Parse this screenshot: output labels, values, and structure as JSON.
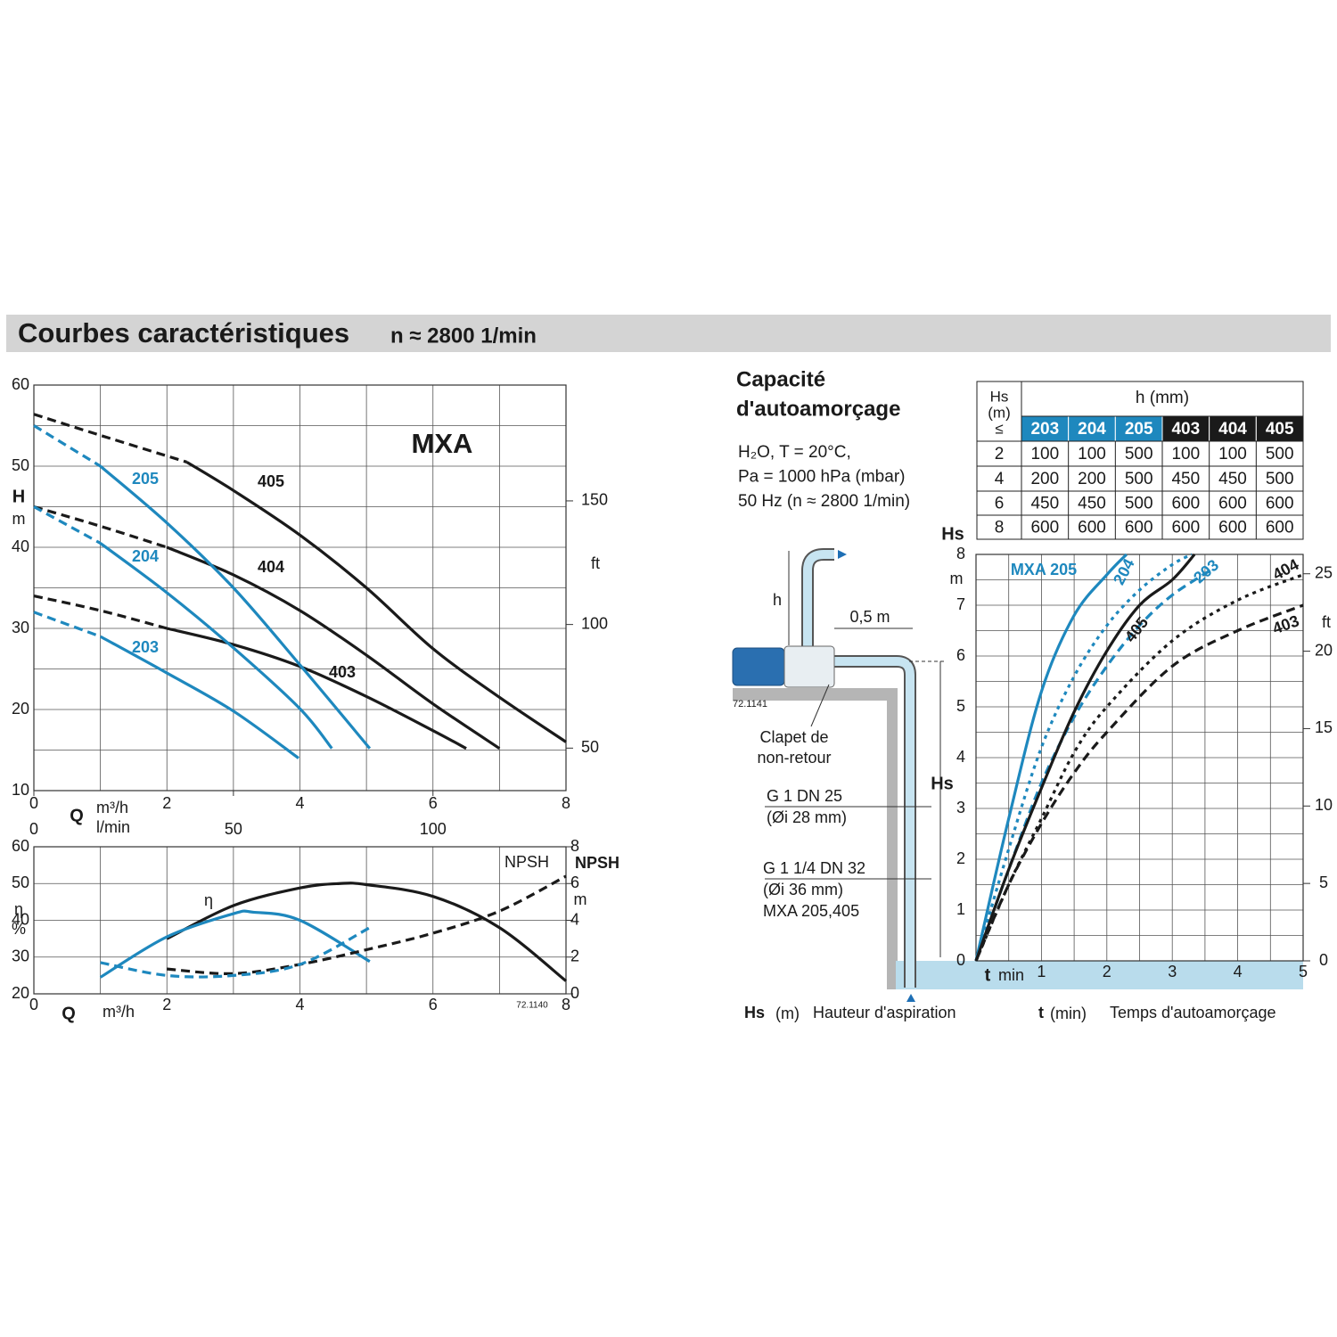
{
  "header": {
    "title": "Courbes caractéristiques",
    "speed": "n ≈ 2800 1/min"
  },
  "chart_data": [
    {
      "type": "line",
      "title": "MXA",
      "xlabel": "Q",
      "xunit": "m³/h",
      "x2unit": "l/min",
      "ylabel": "H",
      "yunit": "m",
      "y2unit": "ft",
      "xlim": [
        0,
        8
      ],
      "xticks": [
        0,
        2,
        4,
        6,
        8
      ],
      "xminor": [
        1,
        3,
        5,
        7
      ],
      "x2lim": [
        0,
        133.33
      ],
      "x2ticks": [
        0,
        50,
        100
      ],
      "ylim": [
        10,
        60
      ],
      "yticks": [
        10,
        20,
        30,
        40,
        50,
        60
      ],
      "yminor": [
        15,
        25,
        35,
        45,
        55
      ],
      "y2lim": [
        32.81,
        196.85
      ],
      "y2ticks": [
        50,
        100,
        150
      ],
      "grid": true,
      "series": [
        {
          "name": "405",
          "color": "#1a1a1a",
          "segments": [
            {
              "style": "dashed",
              "x": [
                0,
                1,
                2.3
              ],
              "values": [
                56.4,
                53.8,
                50.5
              ]
            },
            {
              "style": "solid",
              "x": [
                2.3,
                3,
                4,
                5,
                6,
                7,
                8
              ],
              "values": [
                50.5,
                47,
                41.5,
                35,
                27.5,
                21.5,
                16
              ]
            }
          ]
        },
        {
          "name": "404",
          "color": "#1a1a1a",
          "segments": [
            {
              "style": "dashed",
              "x": [
                0,
                1,
                2
              ],
              "values": [
                45,
                42.6,
                40
              ]
            },
            {
              "style": "solid",
              "x": [
                2,
                3,
                4,
                5,
                6,
                7
              ],
              "values": [
                40,
                36.6,
                32.2,
                26.7,
                20.7,
                15.2
              ]
            }
          ]
        },
        {
          "name": "403",
          "color": "#1a1a1a",
          "segments": [
            {
              "style": "dashed",
              "x": [
                0,
                1,
                2
              ],
              "values": [
                34,
                32.2,
                30
              ]
            },
            {
              "style": "solid",
              "x": [
                2,
                3,
                4,
                5,
                6,
                6.5
              ],
              "values": [
                30,
                28,
                25.3,
                21.6,
                17.4,
                15.2
              ]
            }
          ]
        },
        {
          "name": "205",
          "color": "#1e88be",
          "segments": [
            {
              "style": "dashed",
              "x": [
                0,
                1
              ],
              "values": [
                55,
                50
              ]
            },
            {
              "style": "solid",
              "x": [
                1,
                2,
                3,
                4,
                5.05
              ],
              "values": [
                50,
                43,
                35,
                25.5,
                15.2
              ]
            }
          ]
        },
        {
          "name": "204",
          "color": "#1e88be",
          "segments": [
            {
              "style": "dashed",
              "x": [
                0,
                1
              ],
              "values": [
                45,
                40.5
              ]
            },
            {
              "style": "solid",
              "x": [
                1,
                2,
                3,
                4,
                4.48
              ],
              "values": [
                40.5,
                34.4,
                27.6,
                20.1,
                15.2
              ]
            }
          ]
        },
        {
          "name": "203",
          "color": "#1e88be",
          "segments": [
            {
              "style": "dashed",
              "x": [
                0,
                1
              ],
              "values": [
                32,
                29
              ]
            },
            {
              "style": "solid",
              "x": [
                1,
                2,
                3,
                3.98
              ],
              "values": [
                29,
                24.5,
                19.8,
                14
              ]
            }
          ]
        }
      ]
    },
    {
      "type": "line",
      "xlabel": "Q",
      "xunit": "m³/h",
      "ylabel": "η",
      "yunit": "%",
      "y2label": "NPSH",
      "y2unit": "m",
      "code": "72.1140",
      "annotations": [
        "η",
        "NPSH"
      ],
      "xlim": [
        0,
        8
      ],
      "xticks": [
        0,
        2,
        4,
        6,
        8
      ],
      "xminor": [
        1,
        3,
        5,
        7
      ],
      "ylim": [
        20,
        60
      ],
      "yticks": [
        20,
        30,
        40,
        50,
        60
      ],
      "y2lim": [
        0,
        8
      ],
      "y2ticks": [
        0,
        2,
        4,
        6,
        8
      ],
      "grid": true,
      "series": [
        {
          "color": "#1a1a1a",
          "segments": [
            {
              "style": "solid",
              "x": [
                2,
                3,
                4,
                4.6,
                5,
                6,
                7,
                8
              ],
              "values": [
                35,
                44,
                48.8,
                50,
                49.7,
                46.5,
                38,
                23.5
              ]
            }
          ]
        },
        {
          "color": "#1e88be",
          "segments": [
            {
              "style": "solid",
              "x": [
                1,
                2,
                3,
                3.3,
                4,
                5.05
              ],
              "values": [
                24.5,
                35.5,
                41.8,
                42.2,
                40,
                28.8
              ]
            }
          ]
        },
        {
          "color": "#1a1a1a",
          "axis": "y2",
          "segments": [
            {
              "style": "dashed",
              "x": [
                2,
                3,
                4,
                5,
                6,
                7,
                8
              ],
              "values": [
                1.35,
                1.1,
                1.6,
                2.4,
                3.3,
                4.5,
                6.4
              ]
            }
          ]
        },
        {
          "color": "#1e88be",
          "axis": "y2",
          "segments": [
            {
              "style": "dashed",
              "x": [
                1,
                2,
                3,
                4,
                5.05
              ],
              "values": [
                1.7,
                1.0,
                1.0,
                1.6,
                3.6
              ]
            }
          ]
        }
      ]
    },
    {
      "type": "line",
      "xlabel": "t",
      "xunit": "min",
      "ylabel": "Hs",
      "yunit": "m",
      "y2unit": "ft",
      "xlim": [
        0,
        5
      ],
      "xticks": [
        1,
        2,
        3,
        4,
        5
      ],
      "xminor": [
        0.5,
        1.5,
        2.5,
        3.5,
        4.5
      ],
      "ylim": [
        0,
        8
      ],
      "yticks": [
        0,
        1,
        2,
        3,
        4,
        5,
        6,
        7,
        8
      ],
      "yminor": [
        0.5,
        1.5,
        2.5,
        3.5,
        4.5,
        5.5,
        6.5,
        7.5
      ],
      "y2lim": [
        0,
        26.25
      ],
      "y2ticks": [
        0,
        5,
        10,
        15,
        20,
        25
      ],
      "grid": true,
      "series": [
        {
          "name": "MXA 205",
          "color": "#1e88be",
          "segments": [
            {
              "style": "solid",
              "x": [
                0,
                0.5,
                1,
                1.5,
                2,
                2.3
              ],
              "values": [
                0,
                2.8,
                5.3,
                6.8,
                7.6,
                8
              ]
            }
          ]
        },
        {
          "name": "204",
          "color": "#1e88be",
          "segments": [
            {
              "style": "dotted",
              "x": [
                0,
                0.5,
                1,
                1.5,
                2,
                2.5,
                3,
                3.3
              ],
              "values": [
                0,
                2.2,
                4.2,
                5.6,
                6.6,
                7.3,
                7.8,
                8
              ]
            }
          ]
        },
        {
          "name": "203",
          "color": "#1e88be",
          "segments": [
            {
              "style": "dashed",
              "x": [
                0,
                0.5,
                1,
                1.5,
                2,
                2.5,
                3,
                3.6
              ],
              "values": [
                0,
                1.8,
                3.5,
                4.8,
                5.8,
                6.6,
                7.2,
                7.7
              ]
            }
          ]
        },
        {
          "name": "405",
          "color": "#1a1a1a",
          "segments": [
            {
              "style": "solid",
              "x": [
                0,
                0.5,
                1,
                1.5,
                2,
                2.5,
                3,
                3.34
              ],
              "values": [
                0,
                1.8,
                3.4,
                4.9,
                6.1,
                7.0,
                7.5,
                8
              ]
            }
          ]
        },
        {
          "name": "404",
          "color": "#1a1a1a",
          "segments": [
            {
              "style": "dotted",
              "x": [
                0,
                0.5,
                1,
                1.5,
                2,
                3,
                4,
                5
              ],
              "values": [
                0,
                1.5,
                2.8,
                4.1,
                5.0,
                6.3,
                7.1,
                7.6
              ]
            }
          ]
        },
        {
          "name": "403",
          "color": "#1a1a1a",
          "segments": [
            {
              "style": "dashed",
              "x": [
                0,
                0.5,
                1,
                1.5,
                2,
                3,
                4,
                5
              ],
              "values": [
                0,
                1.5,
                2.7,
                3.7,
                4.5,
                5.8,
                6.5,
                7.0
              ]
            }
          ]
        }
      ]
    }
  ],
  "priming": {
    "title": [
      "Capacité",
      "d'autoamorçage"
    ],
    "conditions": [
      "H₂O, T = 20°C,",
      "Pa = 1000 hPa (mbar)",
      "50 Hz (n ≈ 2800 1/min)"
    ],
    "table": {
      "corner": [
        "Hs",
        "(m)",
        "≤"
      ],
      "group": "h (mm)",
      "columns": [
        {
          "name": "203",
          "color": "#1e88be"
        },
        {
          "name": "204",
          "color": "#1e88be"
        },
        {
          "name": "205",
          "color": "#1e88be"
        },
        {
          "name": "403",
          "color": "#1a1a1a"
        },
        {
          "name": "404",
          "color": "#1a1a1a"
        },
        {
          "name": "405",
          "color": "#1a1a1a"
        }
      ],
      "rows": [
        [
          2,
          100,
          100,
          500,
          100,
          100,
          500
        ],
        [
          4,
          200,
          200,
          500,
          450,
          450,
          500
        ],
        [
          6,
          450,
          450,
          500,
          600,
          600,
          600
        ],
        [
          8,
          600,
          600,
          600,
          600,
          600,
          600
        ]
      ]
    },
    "diagram": {
      "h": "h",
      "distance": "0,5 m",
      "code": "72.1141",
      "valve": [
        "Clapet de",
        "non-retour"
      ],
      "pipe1": [
        "G 1    DN 25",
        "(Øi 28 mm)"
      ],
      "pipe2": [
        "G 1 1/4  DN 32",
        "(Øi 36 mm)",
        "MXA 205,405"
      ],
      "hs": "Hs"
    },
    "footer": [
      {
        "symbol": "Hs",
        "unit": "(m)",
        "text": "Hauteur d'aspiration"
      },
      {
        "symbol": "t",
        "unit": "(min)",
        "text": "Temps d'autoamorçage"
      }
    ]
  }
}
